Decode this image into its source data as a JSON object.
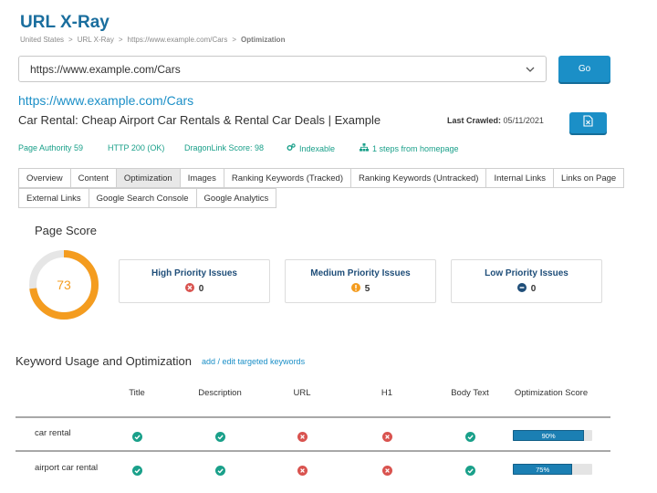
{
  "header": {
    "title": "URL X-Ray",
    "breadcrumb": [
      "United States",
      "URL X-Ray",
      "https://www.example.com/Cars",
      "Optimization"
    ]
  },
  "url_input": {
    "value": "https://www.example.com/Cars"
  },
  "go_button": "Go",
  "page": {
    "url": "https://www.example.com/Cars",
    "title": "Car Rental: Cheap Airport Car Rentals & Rental Car Deals | Example",
    "last_crawled_label": "Last Crawled:",
    "last_crawled_value": "05/11/2021"
  },
  "metrics": {
    "page_authority": "Page Authority 59",
    "http": "HTTP 200 (OK)",
    "dragonlink": "DragonLink Score: 98",
    "indexable": "Indexable",
    "steps": "1 steps from homepage"
  },
  "tabs_row1": [
    "Overview",
    "Content",
    "Optimization",
    "Images",
    "Ranking Keywords (Tracked)",
    "Ranking Keywords (Untracked)",
    "Internal Links",
    "Links on Page"
  ],
  "tabs_row2": [
    "External Links",
    "Google Search Console",
    "Google Analytics"
  ],
  "active_tab": "Optimization",
  "page_score": {
    "heading": "Page Score",
    "value": "73",
    "fraction": 0.73
  },
  "issues": [
    {
      "label": "High Priority Issues",
      "count": "0",
      "icon": "x-circle-icon",
      "color": "#d9534f"
    },
    {
      "label": "Medium Priority Issues",
      "count": "5",
      "icon": "exclamation-circle-icon",
      "color": "#f49c1f"
    },
    {
      "label": "Low Priority Issues",
      "count": "0",
      "icon": "minus-circle-icon",
      "color": "#1f4e79"
    }
  ],
  "keywords": {
    "heading": "Keyword Usage and Optimization",
    "edit_link": "add / edit targeted keywords",
    "columns": [
      "Title",
      "Description",
      "URL",
      "H1",
      "Body Text",
      "Optimization Score"
    ],
    "rows": [
      {
        "keyword": "car rental",
        "checks": [
          true,
          true,
          false,
          false,
          true
        ],
        "score_label": "90%",
        "score": 0.9
      },
      {
        "keyword": "airport car rental",
        "checks": [
          true,
          true,
          false,
          false,
          true
        ],
        "score_label": "75%",
        "score": 0.75
      }
    ]
  },
  "colors": {
    "brand": "#1b8fc7",
    "ok": "#1aa08a",
    "warn": "#f49c1f",
    "error": "#d9534f"
  }
}
